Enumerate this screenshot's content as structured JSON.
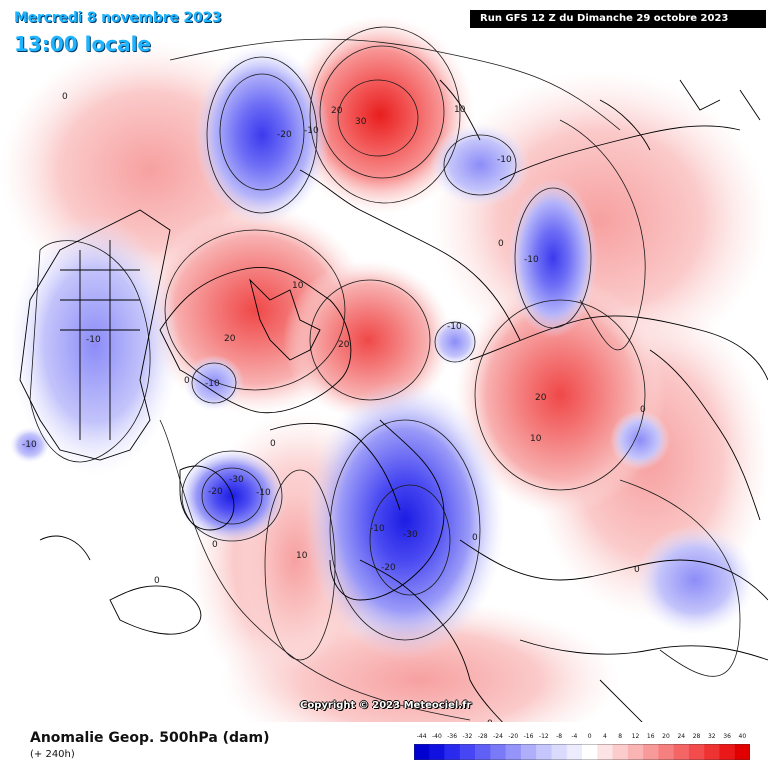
{
  "header": {
    "date": "Mercredi 8 novembre 2023",
    "hour": "13:00 locale",
    "run": "Run GFS 12 Z du Dimanche 29 octobre 2023"
  },
  "footer": {
    "parameter": "Anomalie Geop. 500hPa (dam)",
    "lead": "(+ 240h)",
    "copyright": "Copyright © 2023 Meteociel.fr"
  },
  "legend": {
    "values": [
      "-44",
      "-40",
      "-36",
      "-32",
      "-28",
      "-24",
      "-20",
      "-16",
      "-12",
      "-8",
      "-4",
      "0",
      "4",
      "8",
      "12",
      "16",
      "20",
      "24",
      "28",
      "32",
      "36",
      "40"
    ],
    "colors": [
      "#0000d0",
      "#1010e0",
      "#2a2aee",
      "#4646f4",
      "#6060f6",
      "#7a7af8",
      "#9494fa",
      "#aeaefb",
      "#c6c6fc",
      "#dadafd",
      "#ececfe",
      "#ffffff",
      "#fde4e4",
      "#fccccc",
      "#fab4b4",
      "#f89a9a",
      "#f68080",
      "#f46666",
      "#f24c4c",
      "#ef3232",
      "#ea1818",
      "#e00000"
    ]
  },
  "anomalies": [
    {
      "sign": "negative",
      "label": "-20",
      "region": "north-pacific"
    },
    {
      "sign": "negative",
      "label": "-10",
      "region": "north-pacific"
    },
    {
      "sign": "positive",
      "label": "30",
      "region": "bering-chukchi"
    },
    {
      "sign": "positive",
      "label": "20",
      "region": "bering-chukchi"
    },
    {
      "sign": "positive",
      "label": "10",
      "region": "bering-chukchi"
    },
    {
      "sign": "negative",
      "label": "-10",
      "region": "east-siberia"
    },
    {
      "sign": "negative",
      "label": "-10",
      "region": "central-siberia"
    },
    {
      "sign": "positive",
      "label": "20",
      "region": "canadian-arctic"
    },
    {
      "sign": "positive",
      "label": "10",
      "region": "canadian-arctic"
    },
    {
      "sign": "positive",
      "label": "20",
      "region": "arctic-ocean"
    },
    {
      "sign": "negative",
      "label": "-10",
      "region": "kara-sea"
    },
    {
      "sign": "negative",
      "label": "-10",
      "region": "hudson-bay"
    },
    {
      "sign": "negative",
      "label": "-10",
      "region": "north-america"
    },
    {
      "sign": "negative",
      "label": "-10",
      "region": "gulf-of-mexico"
    },
    {
      "sign": "positive",
      "label": "20",
      "region": "west-siberia"
    },
    {
      "sign": "positive",
      "label": "10",
      "region": "west-siberia"
    },
    {
      "sign": "negative",
      "label": "-30",
      "region": "labrador-sea"
    },
    {
      "sign": "negative",
      "label": "-20",
      "region": "labrador-sea"
    },
    {
      "sign": "negative",
      "label": "-10",
      "region": "labrador-sea"
    },
    {
      "sign": "positive",
      "label": "10",
      "region": "north-atlantic"
    },
    {
      "sign": "negative",
      "label": "-30",
      "region": "scandinavia"
    },
    {
      "sign": "negative",
      "label": "-20",
      "region": "western-europe"
    },
    {
      "sign": "negative",
      "label": "-10",
      "region": "scandinavia"
    },
    {
      "sign": "zero",
      "label": "0",
      "region": "north-pacific"
    },
    {
      "sign": "zero",
      "label": "0",
      "region": "siberia"
    },
    {
      "sign": "zero",
      "label": "0",
      "region": "canada"
    },
    {
      "sign": "zero",
      "label": "0",
      "region": "greenland"
    },
    {
      "sign": "zero",
      "label": "0",
      "region": "atlantic"
    },
    {
      "sign": "zero",
      "label": "0",
      "region": "europe"
    },
    {
      "sign": "zero",
      "label": "0",
      "region": "asia"
    },
    {
      "sign": "zero",
      "label": "0",
      "region": "asia-east"
    },
    {
      "sign": "zero",
      "label": "0",
      "region": "south-atlantic"
    },
    {
      "sign": "zero",
      "label": "0",
      "region": "africa"
    }
  ]
}
